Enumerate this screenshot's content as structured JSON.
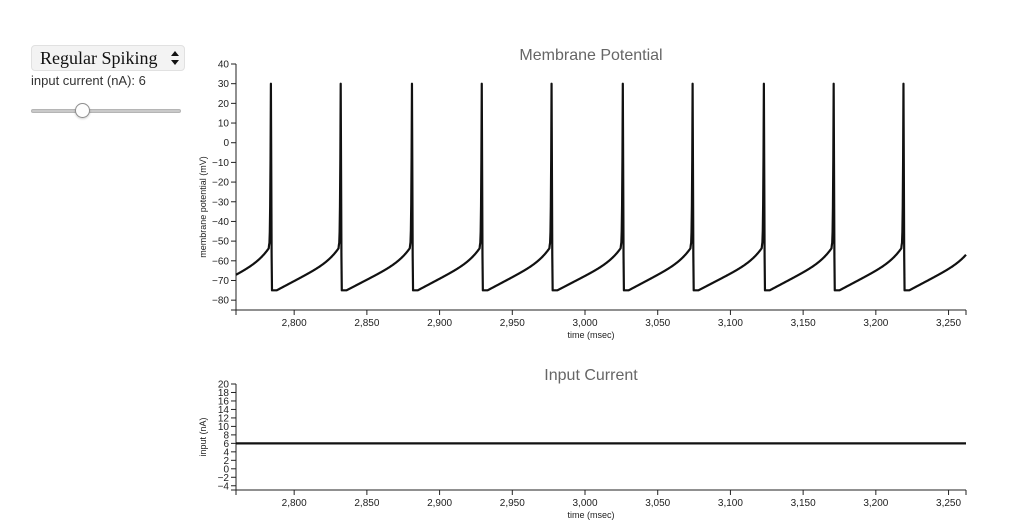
{
  "controls": {
    "neuron_type": "Regular Spiking",
    "current_label": "input current (nA): 6",
    "current_value": 6,
    "current_min": 0,
    "current_max": 20
  },
  "chart_data": [
    {
      "type": "line",
      "title": "Membrane Potential",
      "xlabel": "time (msec)",
      "ylabel": "membrane potential (mV)",
      "xlim": [
        2760,
        3262
      ],
      "ylim": [
        -85,
        40
      ],
      "xticks": [
        "2,800",
        "2,850",
        "2,900",
        "2,950",
        "3,000",
        "3,050",
        "3,100",
        "3,150",
        "3,200",
        "3,250"
      ],
      "yticks": [
        "40",
        "30",
        "20",
        "10",
        "0",
        "−10",
        "−20",
        "−30",
        "−40",
        "−50",
        "−60",
        "−70",
        "−80"
      ],
      "spike_times": [
        2784,
        2832,
        2881,
        2929,
        2977,
        3026,
        3074,
        3123,
        3171,
        3219
      ],
      "spike_peak": 30,
      "trough": -75,
      "series": [
        {
          "color": "#111111"
        }
      ]
    },
    {
      "type": "line",
      "title": "Input Current",
      "xlabel": "time (msec)",
      "ylabel": "input (nA)",
      "xlim": [
        2760,
        3262
      ],
      "ylim": [
        -5,
        20
      ],
      "xticks": [
        "2,800",
        "2,850",
        "2,900",
        "2,950",
        "3,000",
        "3,050",
        "3,100",
        "3,150",
        "3,200",
        "3,250"
      ],
      "yticks": [
        "20",
        "18",
        "16",
        "14",
        "12",
        "10",
        "8",
        "6",
        "4",
        "2",
        "0",
        "−2",
        "−4"
      ],
      "constant_value": 6,
      "series": [
        {
          "color": "#111111"
        }
      ]
    }
  ]
}
